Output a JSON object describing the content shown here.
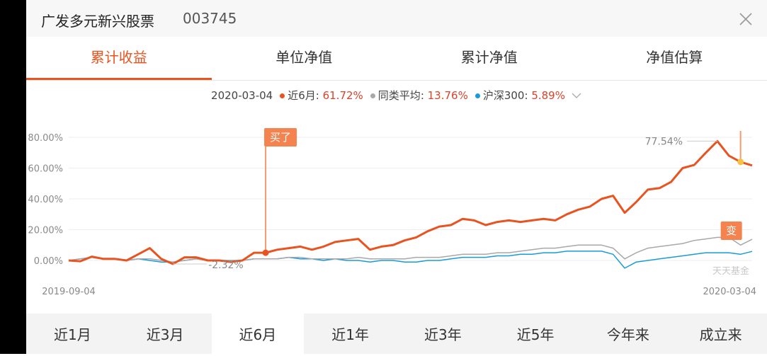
{
  "header": {
    "title": "广发多元新兴股票",
    "code": "003745"
  },
  "tabs": {
    "items": [
      "累计收益",
      "单位净值",
      "累计净值",
      "净值估算"
    ],
    "active": 0
  },
  "periods": {
    "items": [
      "近1月",
      "近3月",
      "近6月",
      "近1年",
      "近3年",
      "近5年",
      "今年来",
      "成立来"
    ],
    "active": 2
  },
  "chart_data": {
    "type": "line",
    "legend_date": "2020-03-04",
    "categories": [
      "2019-09-04",
      null,
      null,
      null,
      null,
      null,
      null,
      null,
      null,
      null,
      null,
      null,
      null,
      null,
      null,
      null,
      null,
      null,
      null,
      null,
      null,
      null,
      null,
      null,
      null,
      null,
      null,
      null,
      null,
      null,
      null,
      null,
      null,
      null,
      null,
      null,
      null,
      null,
      null,
      null,
      null,
      null,
      null,
      null,
      null,
      null,
      null,
      null,
      null,
      null,
      null,
      null,
      null,
      null,
      null,
      null,
      null,
      null,
      null,
      "2020-03-04"
    ],
    "series": [
      {
        "name": "近6月",
        "color": "#e8531f",
        "legend_value": "61.72%",
        "values": [
          0,
          -0.5,
          2.5,
          1,
          1,
          0,
          4,
          8,
          1,
          -2.32,
          2,
          2,
          0,
          0,
          -1,
          0,
          5,
          5,
          7,
          8,
          9,
          7,
          9,
          12,
          13,
          14,
          7,
          9,
          10,
          13,
          15,
          19,
          22,
          23,
          27,
          26,
          23,
          25,
          26,
          25,
          26,
          27,
          26,
          30,
          33,
          35,
          40,
          42,
          31,
          38,
          46,
          47,
          51,
          60,
          62,
          70,
          77.54,
          68,
          64,
          61.72
        ]
      },
      {
        "name": "同类平均",
        "color": "#a8a8a8",
        "legend_value": "13.76%",
        "values": [
          0,
          1,
          2,
          1,
          1,
          0,
          1,
          1,
          0,
          -1,
          0,
          1,
          0,
          0,
          0,
          0,
          1,
          1,
          1,
          2,
          2,
          1,
          1,
          1,
          1,
          2,
          1,
          1,
          1,
          1,
          2,
          2,
          2,
          3,
          4,
          4,
          4,
          5,
          5,
          6,
          7,
          8,
          8,
          9,
          10,
          10,
          10,
          8,
          1,
          5,
          8,
          9,
          10,
          11,
          13,
          14,
          15,
          15,
          10,
          13.76
        ]
      },
      {
        "name": "沪深300",
        "color": "#1a9bd7",
        "legend_value": "5.89%",
        "values": [
          0,
          1,
          2,
          1,
          1,
          0,
          1,
          0,
          -1,
          -1,
          0,
          1,
          0,
          0,
          0,
          0,
          1,
          1,
          1,
          2,
          1,
          1,
          0,
          1,
          0,
          0,
          -1,
          0,
          0,
          -1,
          -1,
          0,
          0,
          1,
          2,
          2,
          2,
          3,
          3,
          4,
          4,
          5,
          5,
          6,
          6,
          6,
          6,
          4,
          -5,
          -1,
          0,
          1,
          2,
          3,
          4,
          5,
          5,
          5,
          4,
          5.89
        ]
      }
    ],
    "ylim": [
      -10,
      80
    ],
    "yticks": [
      {
        "value": 0,
        "label": "0.00%"
      },
      {
        "value": 20,
        "label": "20.00%"
      },
      {
        "value": 40,
        "label": "40.00%"
      },
      {
        "value": 60,
        "label": "60.00%"
      },
      {
        "value": 80,
        "label": "80.00%"
      }
    ],
    "grid": true,
    "annotations": {
      "max_label": "77.54%",
      "min_label": "-2.32%",
      "markers": [
        {
          "label": "买了",
          "index": 17
        },
        {
          "label": "变",
          "index": 58
        }
      ]
    },
    "watermark": "天天基金"
  }
}
